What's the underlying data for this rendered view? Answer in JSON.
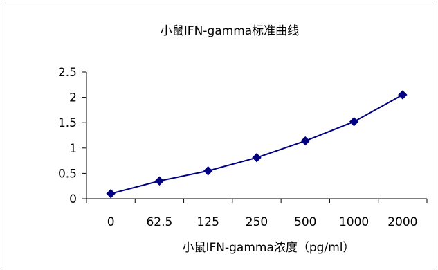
{
  "chart_data": {
    "type": "line",
    "title": "小鼠IFN-gamma标准曲线",
    "xlabel": "小鼠IFN-gamma浓度（pg/ml）",
    "ylabel": "",
    "categories": [
      "0",
      "62.5",
      "125",
      "250",
      "500",
      "1000",
      "2000"
    ],
    "series": [
      {
        "values": [
          0.1,
          0.35,
          0.55,
          0.81,
          1.14,
          1.52,
          2.05
        ]
      }
    ],
    "yticks": [
      "0",
      "0.5",
      "1",
      "1.5",
      "2",
      "2.5"
    ],
    "ylim": [
      0,
      2.5
    ],
    "grid": false,
    "legend": "none",
    "colors": {
      "series": "#000080",
      "axis": "#000000",
      "text": "#000000"
    }
  }
}
